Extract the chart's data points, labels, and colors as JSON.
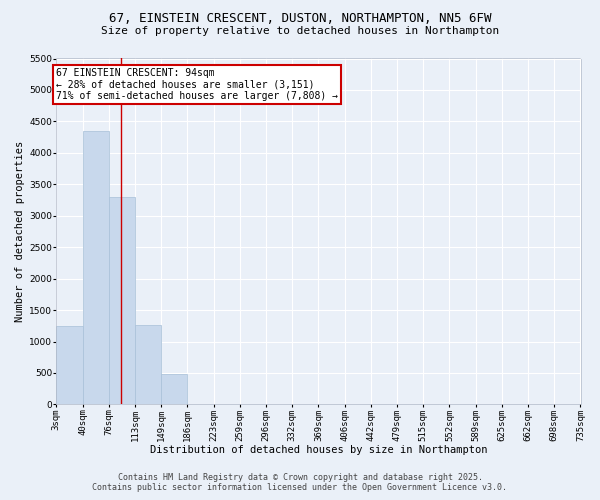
{
  "title_line1": "67, EINSTEIN CRESCENT, DUSTON, NORTHAMPTON, NN5 6FW",
  "title_line2": "Size of property relative to detached houses in Northampton",
  "xlabel": "Distribution of detached houses by size in Northampton",
  "ylabel": "Number of detached properties",
  "bar_color": "#c8d8ec",
  "bar_edge_color": "#a8c0d8",
  "background_color": "#eaf0f8",
  "grid_color": "#ffffff",
  "bin_edges": [
    3,
    40,
    76,
    113,
    149,
    186,
    223,
    259,
    296,
    332,
    369,
    406,
    442,
    479,
    515,
    552,
    589,
    625,
    662,
    698,
    735
  ],
  "bin_labels": [
    "3sqm",
    "40sqm",
    "76sqm",
    "113sqm",
    "149sqm",
    "186sqm",
    "223sqm",
    "259sqm",
    "296sqm",
    "332sqm",
    "369sqm",
    "406sqm",
    "442sqm",
    "479sqm",
    "515sqm",
    "552sqm",
    "589sqm",
    "625sqm",
    "662sqm",
    "698sqm",
    "735sqm"
  ],
  "counts": [
    1250,
    4350,
    3300,
    1270,
    490,
    0,
    0,
    0,
    0,
    0,
    0,
    0,
    0,
    0,
    0,
    0,
    0,
    0,
    0,
    0
  ],
  "ylim": [
    0,
    5500
  ],
  "yticks": [
    0,
    500,
    1000,
    1500,
    2000,
    2500,
    3000,
    3500,
    4000,
    4500,
    5000,
    5500
  ],
  "property_size": 94,
  "red_line_color": "#cc0000",
  "annotation_line1": "67 EINSTEIN CRESCENT: 94sqm",
  "annotation_line2": "← 28% of detached houses are smaller (3,151)",
  "annotation_line3": "71% of semi-detached houses are larger (7,808) →",
  "annotation_box_color": "#cc0000",
  "footnote_line1": "Contains HM Land Registry data © Crown copyright and database right 2025.",
  "footnote_line2": "Contains public sector information licensed under the Open Government Licence v3.0.",
  "title_fontsize": 9,
  "subtitle_fontsize": 8,
  "axis_label_fontsize": 7.5,
  "tick_fontsize": 6.5,
  "annotation_fontsize": 7,
  "footnote_fontsize": 6
}
